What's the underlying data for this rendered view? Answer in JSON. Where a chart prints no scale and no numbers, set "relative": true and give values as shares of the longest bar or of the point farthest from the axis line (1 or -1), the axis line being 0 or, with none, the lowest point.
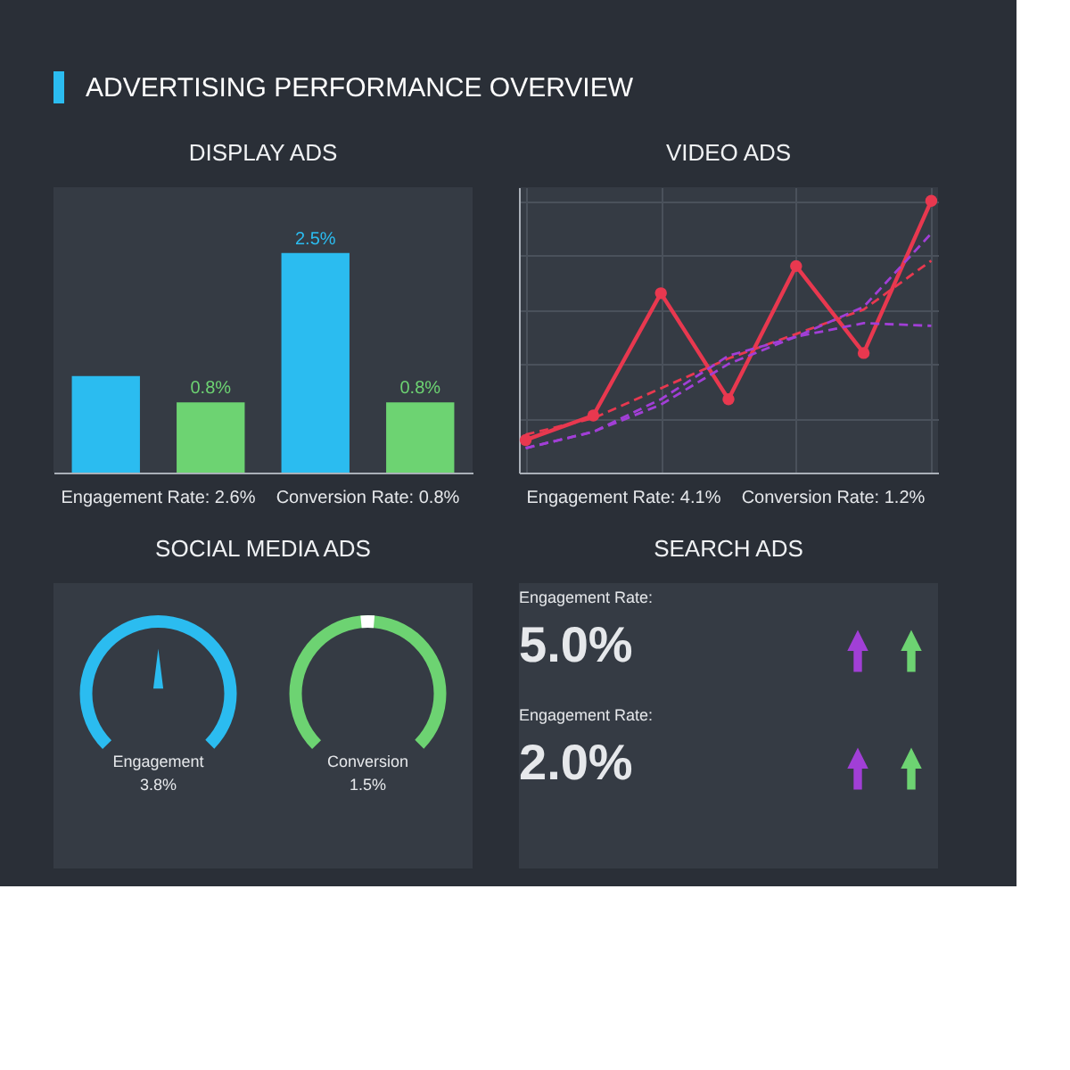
{
  "chart_data": [
    {
      "type": "other",
      "title": "ADVERTISING PERFORMANCE OVERVIEW"
    },
    {
      "type": "bar",
      "title": "DISPLAY ADS",
      "categories": [
        null,
        null,
        null,
        null
      ],
      "values": [
        1.1,
        0.8,
        2.5,
        0.8
      ],
      "colors": [
        "#2bbcf0",
        "#6dd372",
        "#2bbcf0",
        "#6dd372"
      ],
      "value_labels": [
        null,
        "0.8%",
        "2.5%",
        "0.8%"
      ],
      "annotations": [
        "Engagement Rate: 2.6%",
        "Conversion Rate: 0.8%"
      ]
    },
    {
      "type": "line",
      "title": "VIDEO ADS",
      "relative": true,
      "grid": true,
      "categories": [
        null,
        null,
        null,
        null,
        null,
        null,
        null
      ],
      "series": [
        {
          "color": "#e8384f",
          "values": [
            0.12,
            0.21,
            0.66,
            0.27,
            0.76,
            0.44,
            1
          ],
          "marker": "circle",
          "line_style": "solid"
        },
        {
          "color": "#e8384f",
          "values": [
            0.14,
            0.2,
            0.31,
            0.42,
            0.51,
            0.6,
            0.78
          ],
          "marker": "none",
          "line_style": "dashed"
        },
        {
          "color": "#a13fd6",
          "values": [
            0.09,
            0.15,
            0.27,
            0.43,
            0.5,
            0.55,
            0.54
          ],
          "marker": "none",
          "line_style": "dashed"
        },
        {
          "color": "#a13fd6",
          "values": [
            0.09,
            0.15,
            0.25,
            0.4,
            0.5,
            0.61,
            0.88
          ],
          "marker": "none",
          "line_style": "dashed"
        }
      ],
      "annotations": [
        "Engagement Rate: 4.1%",
        "Conversion Rate: 1.2%"
      ]
    },
    {
      "type": "other",
      "title": "SOCIAL MEDIA ADS",
      "annotations": [
        "Engagement",
        "3.8%",
        "Conversion",
        "1.5%"
      ]
    },
    {
      "type": "other",
      "title": "SEARCH ADS",
      "annotations": [
        "Engagement Rate:",
        "5.0%",
        "Engagement Rate:",
        "2.0%"
      ]
    }
  ]
}
